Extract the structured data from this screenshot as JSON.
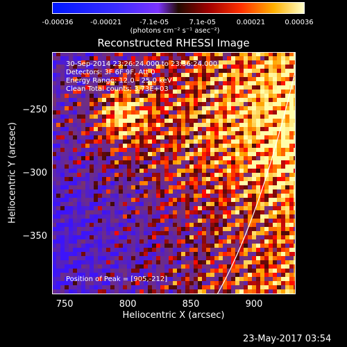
{
  "colorbar": {
    "ticks": [
      "-0.00036",
      "-0.00021",
      "-7.1e-05",
      "7.1e-05",
      "0.00021",
      "0.00036"
    ],
    "unit": "(photons cm⁻² s⁻¹ asec⁻²)",
    "range": [
      -0.00036,
      0.00036
    ]
  },
  "chart_data": {
    "type": "heatmap",
    "title": "Reconstructed RHESSI Image",
    "xlabel": "Heliocentric X (arcsec)",
    "ylabel": "Heliocentric Y (arcsec)",
    "xlim": [
      740,
      933
    ],
    "ylim": [
      -395,
      -203
    ],
    "xticks": [
      750,
      800,
      850,
      900
    ],
    "yticks": [
      -250,
      -300,
      -350
    ],
    "xtick_labels": [
      "750",
      "800",
      "850",
      "900"
    ],
    "ytick_labels": [
      "−250",
      "−300",
      "−350"
    ],
    "annotations": [
      "30-Sep-2014 23:26:24.000 to 23:36:24.000",
      "Detectors: 3F 6F 9F, Att 0",
      "Energy Range: 12.0 - 25.0 keV",
      "Clean    Total counts: 3.73E+03",
      "Position of Peak = [905,-212]"
    ],
    "peak": [
      905,
      -212
    ],
    "limb": "solar limb arc along lower-right"
  },
  "footer": {
    "date": "23-May-2017 03:54"
  }
}
